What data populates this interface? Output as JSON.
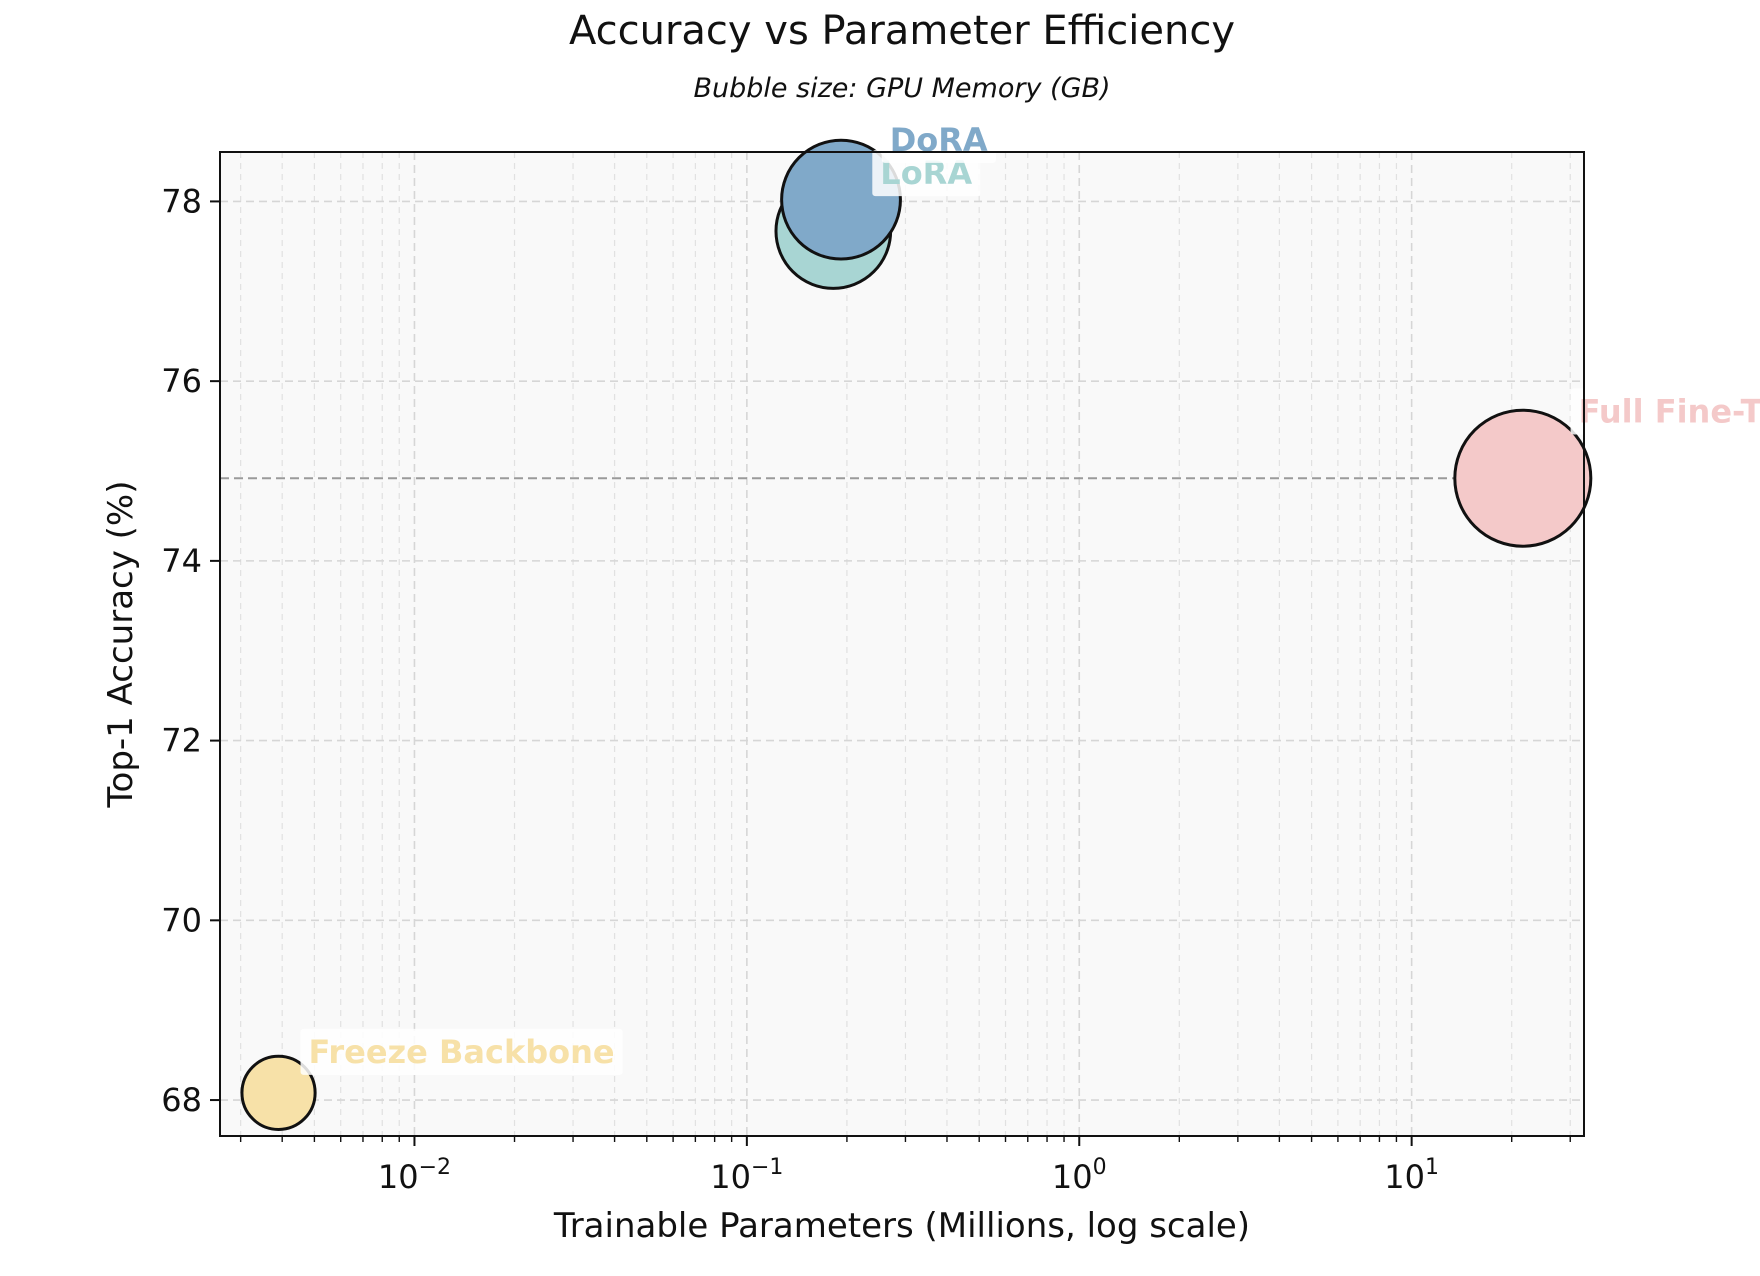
{
  "chart_data": {
    "type": "scatter",
    "title": "Accuracy vs Parameter Efficiency",
    "subtitle": "Bubble size: GPU Memory (GB)",
    "xlabel": "Trainable Parameters (Millions, log scale)",
    "ylabel": "Top-1 Accuracy (%)",
    "xscale": "log",
    "xlim": [
      0.0026,
      33
    ],
    "ylim": [
      67.6,
      78.55
    ],
    "x_ticks": [
      {
        "base": "10",
        "exp": "−2",
        "value": 0.01
      },
      {
        "base": "10",
        "exp": "−1",
        "value": 0.1
      },
      {
        "base": "10",
        "exp": "0",
        "value": 1
      },
      {
        "base": "10",
        "exp": "1",
        "value": 10
      }
    ],
    "y_ticks": [
      68,
      70,
      72,
      74,
      76,
      78
    ],
    "grid": true,
    "reference_line": {
      "y": 74.92,
      "style": "dashed",
      "color": "#9a9a9a"
    },
    "points": [
      {
        "name": "Freeze Backbone",
        "x": 0.0039,
        "y": 68.08,
        "gpu_memory_gb": 4.4,
        "color": "#f7e1a8"
      },
      {
        "name": "LoRA",
        "x": 0.182,
        "y": 77.67,
        "gpu_memory_gb": 10.8,
        "color": "#a8d5d3"
      },
      {
        "name": "DoRA",
        "x": 0.192,
        "y": 78.02,
        "gpu_memory_gb": 11.6,
        "color": "#80a9c9"
      },
      {
        "name": "Full Fine-T",
        "x": 21.6,
        "y": 74.92,
        "gpu_memory_gb": 15.2,
        "color": "#f4c9c9"
      }
    ]
  }
}
